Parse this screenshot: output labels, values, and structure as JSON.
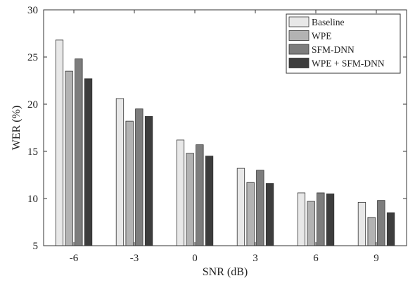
{
  "chart_data": {
    "type": "bar",
    "xlabel": "SNR (dB)",
    "ylabel": "WER (%)",
    "ylim": [
      5,
      30
    ],
    "yticks": [
      5,
      10,
      15,
      20,
      25,
      30
    ],
    "categories": [
      "-6",
      "-3",
      "0",
      "3",
      "6",
      "9"
    ],
    "series": [
      {
        "name": "Baseline",
        "color": "#e8e8e8",
        "values": [
          26.8,
          20.6,
          16.2,
          13.2,
          10.6,
          9.6
        ]
      },
      {
        "name": "WPE",
        "color": "#b3b3b3",
        "values": [
          23.5,
          18.2,
          14.8,
          11.7,
          9.7,
          8.0
        ]
      },
      {
        "name": "SFM-DNN",
        "color": "#7d7d7d",
        "values": [
          24.8,
          19.5,
          15.7,
          13.0,
          10.6,
          9.8
        ]
      },
      {
        "name": "WPE + SFM-DNN",
        "color": "#3d3d3d",
        "values": [
          22.7,
          18.7,
          14.5,
          11.6,
          10.5,
          8.5
        ]
      }
    ],
    "legend_position": "top-right",
    "grid": false
  }
}
